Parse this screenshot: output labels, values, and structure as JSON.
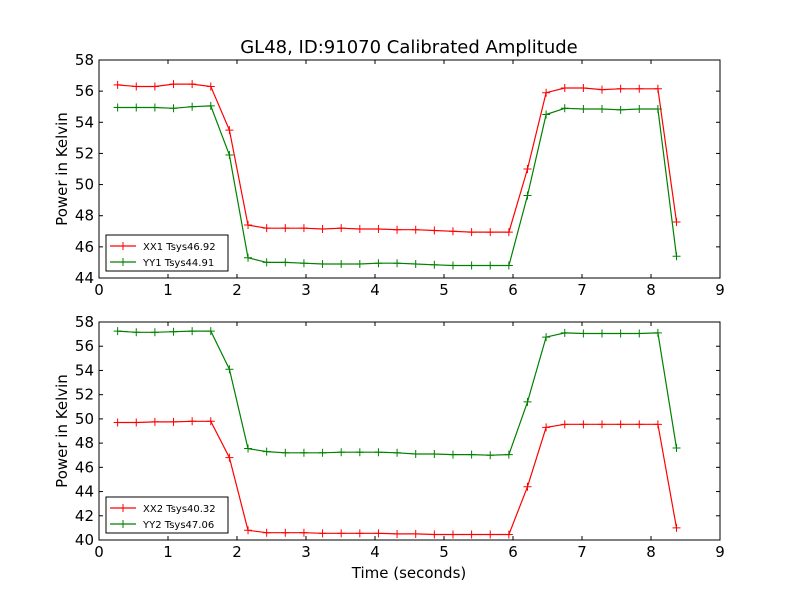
{
  "title": "GL48, ID:91070 Calibrated Amplitude",
  "xlabel": "Time (seconds)",
  "colors": {
    "red": "#ff0000",
    "green": "#008000"
  },
  "chart_data": [
    {
      "type": "line",
      "title": "GL48, ID:91070 Calibrated Amplitude",
      "xlabel": "",
      "ylabel": "Power in Kelvin",
      "xlim": [
        0,
        9
      ],
      "ylim": [
        44,
        58
      ],
      "xticks": [
        "0",
        "1",
        "2",
        "3",
        "4",
        "5",
        "6",
        "7",
        "8",
        "9"
      ],
      "yticks": [
        "44",
        "46",
        "48",
        "50",
        "52",
        "54",
        "56",
        "58"
      ],
      "legend_position": "lower-left",
      "grid": false,
      "series": [
        {
          "name": "XX1 Tsys46.92",
          "color": "#ff0000",
          "x": [
            0.27,
            0.54,
            0.81,
            1.08,
            1.35,
            1.62,
            1.89,
            2.16,
            2.43,
            2.7,
            2.97,
            3.24,
            3.51,
            3.78,
            4.05,
            4.32,
            4.59,
            4.86,
            5.13,
            5.4,
            5.67,
            5.94,
            6.21,
            6.48,
            6.75,
            7.02,
            7.29,
            7.56,
            7.83,
            8.1,
            8.37
          ],
          "y": [
            56.4,
            56.3,
            56.3,
            56.45,
            56.45,
            56.3,
            53.5,
            47.4,
            47.2,
            47.2,
            47.2,
            47.15,
            47.2,
            47.15,
            47.15,
            47.1,
            47.1,
            47.05,
            47.0,
            46.95,
            46.95,
            46.95,
            51.0,
            55.9,
            56.2,
            56.2,
            56.1,
            56.15,
            56.15,
            56.15,
            47.6
          ]
        },
        {
          "name": "YY1 Tsys44.91",
          "color": "#008000",
          "x": [
            0.27,
            0.54,
            0.81,
            1.08,
            1.35,
            1.62,
            1.89,
            2.16,
            2.43,
            2.7,
            2.97,
            3.24,
            3.51,
            3.78,
            4.05,
            4.32,
            4.59,
            4.86,
            5.13,
            5.4,
            5.67,
            5.94,
            6.21,
            6.48,
            6.75,
            7.02,
            7.29,
            7.56,
            7.83,
            8.1,
            8.37
          ],
          "y": [
            54.95,
            54.95,
            54.95,
            54.9,
            55.0,
            55.05,
            51.9,
            45.3,
            45.0,
            45.0,
            44.95,
            44.9,
            44.9,
            44.9,
            44.95,
            44.95,
            44.9,
            44.85,
            44.8,
            44.8,
            44.8,
            44.8,
            49.3,
            54.5,
            54.9,
            54.85,
            54.85,
            54.8,
            54.85,
            54.85,
            45.4
          ]
        }
      ]
    },
    {
      "type": "line",
      "title": "",
      "xlabel": "Time (seconds)",
      "ylabel": "Power in Kelvin",
      "xlim": [
        0,
        9
      ],
      "ylim": [
        40,
        58
      ],
      "xticks": [
        "0",
        "1",
        "2",
        "3",
        "4",
        "5",
        "6",
        "7",
        "8",
        "9"
      ],
      "yticks": [
        "40",
        "42",
        "44",
        "46",
        "48",
        "50",
        "52",
        "54",
        "56",
        "58"
      ],
      "legend_position": "lower-left",
      "grid": false,
      "series": [
        {
          "name": "XX2 Tsys40.32",
          "color": "#ff0000",
          "x": [
            0.27,
            0.54,
            0.81,
            1.08,
            1.35,
            1.62,
            1.89,
            2.16,
            2.43,
            2.7,
            2.97,
            3.24,
            3.51,
            3.78,
            4.05,
            4.32,
            4.59,
            4.86,
            5.13,
            5.4,
            5.67,
            5.94,
            6.21,
            6.48,
            6.75,
            7.02,
            7.29,
            7.56,
            7.83,
            8.1,
            8.37
          ],
          "y": [
            49.7,
            49.7,
            49.75,
            49.75,
            49.8,
            49.8,
            46.8,
            40.8,
            40.6,
            40.6,
            40.6,
            40.55,
            40.55,
            40.55,
            40.55,
            40.5,
            40.5,
            40.45,
            40.45,
            40.45,
            40.45,
            40.45,
            44.4,
            49.3,
            49.55,
            49.55,
            49.55,
            49.55,
            49.55,
            49.55,
            41.0
          ]
        },
        {
          "name": "YY2 Tsys47.06",
          "color": "#008000",
          "x": [
            0.27,
            0.54,
            0.81,
            1.08,
            1.35,
            1.62,
            1.89,
            2.16,
            2.43,
            2.7,
            2.97,
            3.24,
            3.51,
            3.78,
            4.05,
            4.32,
            4.59,
            4.86,
            5.13,
            5.4,
            5.67,
            5.94,
            6.21,
            6.48,
            6.75,
            7.02,
            7.29,
            7.56,
            7.83,
            8.1,
            8.37
          ],
          "y": [
            57.25,
            57.15,
            57.15,
            57.2,
            57.25,
            57.25,
            54.1,
            47.55,
            47.3,
            47.2,
            47.2,
            47.2,
            47.25,
            47.25,
            47.25,
            47.2,
            47.1,
            47.1,
            47.05,
            47.05,
            47.0,
            47.05,
            51.4,
            56.75,
            57.1,
            57.05,
            57.05,
            57.05,
            57.05,
            57.1,
            47.6
          ]
        }
      ]
    }
  ]
}
